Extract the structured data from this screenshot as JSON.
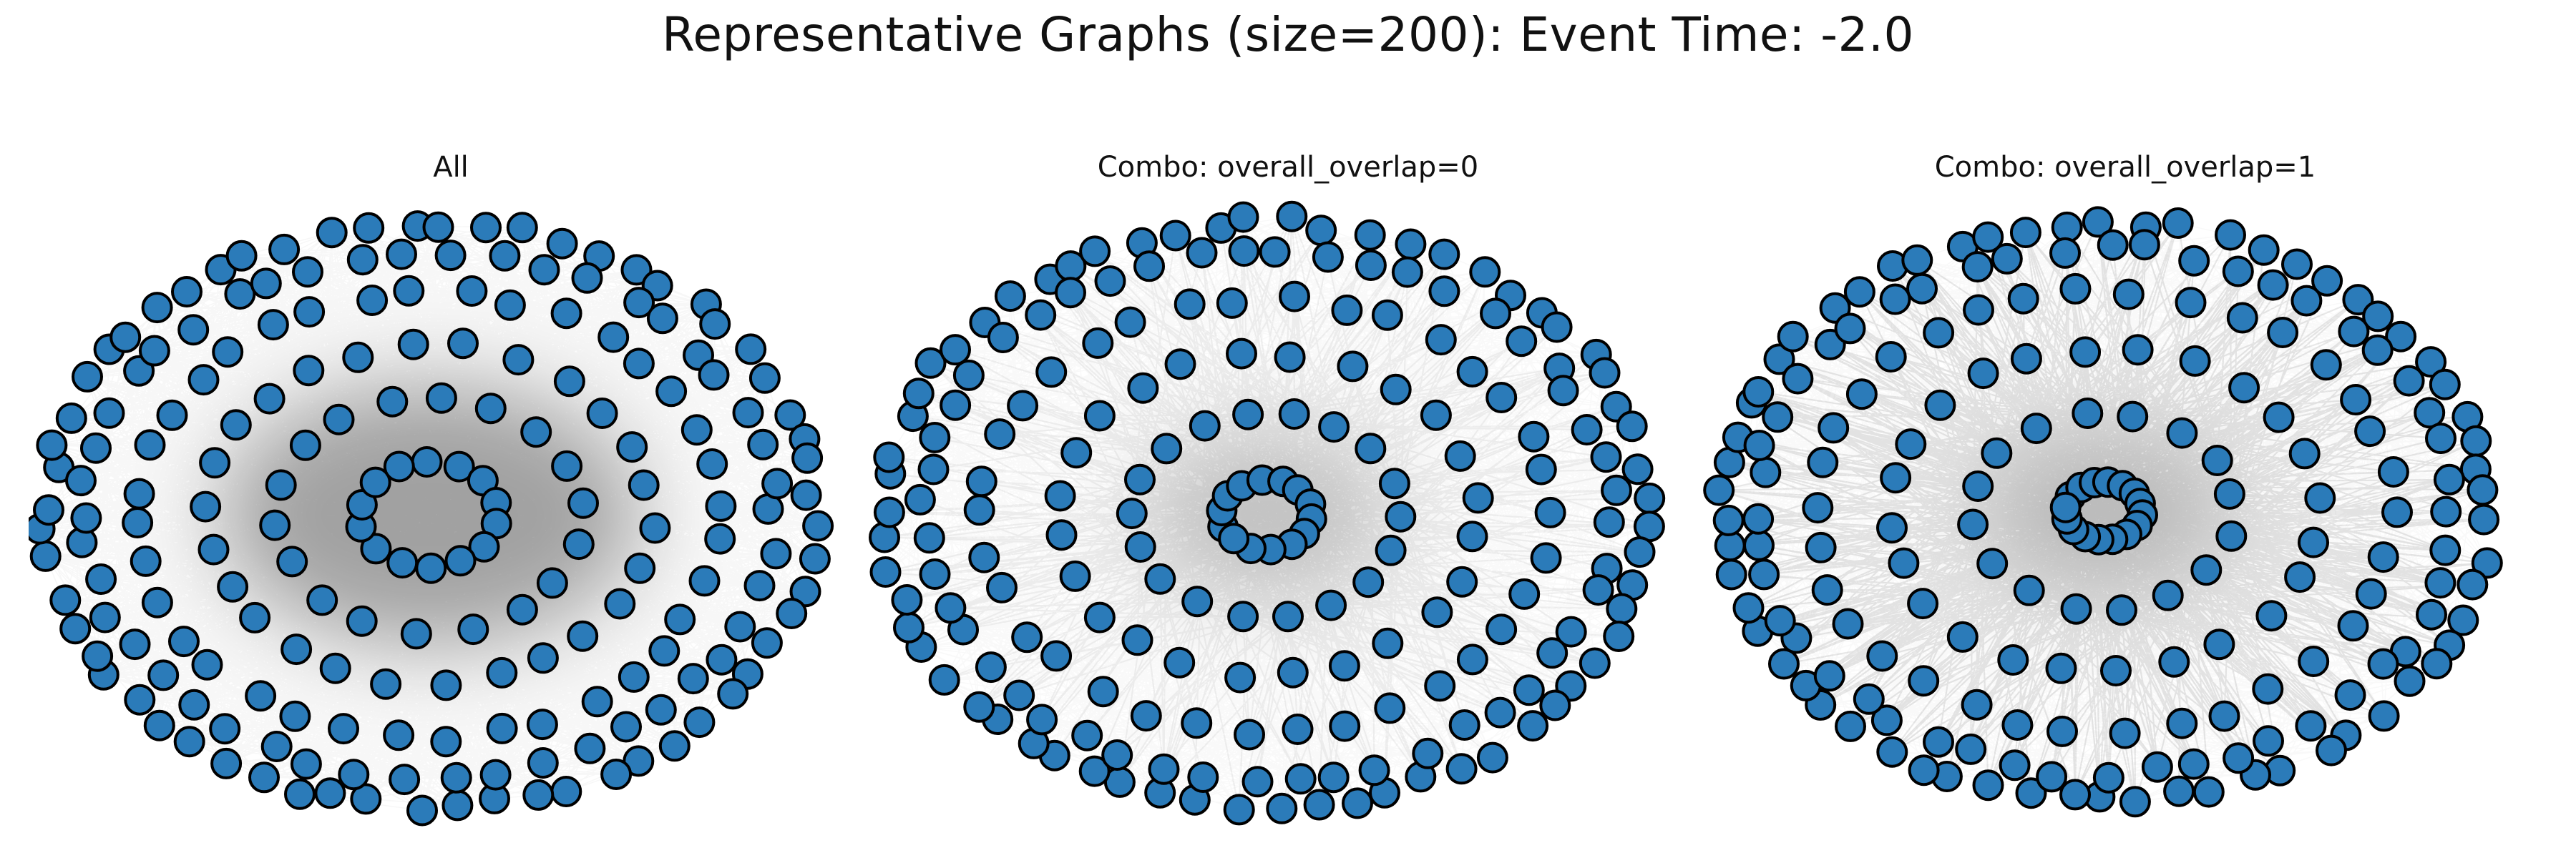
{
  "title": "Representative Graphs (size=200): Event Time: -2.0",
  "colors": {
    "node_fill": "#2b7bb9",
    "node_stroke": "#000000",
    "edge": "#000000",
    "background": "#ffffff"
  },
  "panels": [
    {
      "label": "All",
      "graph_size": 200,
      "edge_density": "high",
      "hub_structure": "diffuse"
    },
    {
      "label": "Combo: overall_overlap=0",
      "graph_size": 200,
      "edge_density": "medium",
      "hub_structure": "center"
    },
    {
      "label": "Combo: overall_overlap=1",
      "graph_size": 200,
      "edge_density": "high",
      "hub_structure": "strong-center"
    }
  ]
}
